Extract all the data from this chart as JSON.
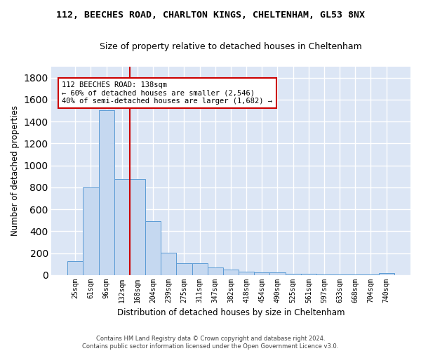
{
  "title1": "112, BEECHES ROAD, CHARLTON KINGS, CHELTENHAM, GL53 8NX",
  "title2": "Size of property relative to detached houses in Cheltenham",
  "xlabel": "Distribution of detached houses by size in Cheltenham",
  "ylabel": "Number of detached properties",
  "footer": "Contains HM Land Registry data © Crown copyright and database right 2024.\nContains public sector information licensed under the Open Government Licence v3.0.",
  "bar_labels": [
    "25sqm",
    "61sqm",
    "96sqm",
    "132sqm",
    "168sqm",
    "204sqm",
    "239sqm",
    "275sqm",
    "311sqm",
    "347sqm",
    "382sqm",
    "418sqm",
    "454sqm",
    "490sqm",
    "525sqm",
    "561sqm",
    "597sqm",
    "633sqm",
    "668sqm",
    "704sqm",
    "740sqm"
  ],
  "bar_values": [
    127,
    800,
    1500,
    875,
    875,
    490,
    205,
    110,
    110,
    70,
    50,
    30,
    25,
    25,
    10,
    10,
    5,
    5,
    5,
    5,
    18
  ],
  "bar_color": "#c5d8f0",
  "bar_edge_color": "#5b9bd5",
  "bg_color": "#dce6f5",
  "grid_color": "#ffffff",
  "ylim_max": 1900,
  "yticks": [
    0,
    200,
    400,
    600,
    800,
    1000,
    1200,
    1400,
    1600,
    1800
  ],
  "property_label": "112 BEECHES ROAD: 138sqm",
  "annotation_line1": "← 60% of detached houses are smaller (2,546)",
  "annotation_line2": "40% of semi-detached houses are larger (1,682) →",
  "vline_color": "#cc0000",
  "annotation_box_edge": "#cc0000",
  "vline_x": 3.5,
  "title1_fontsize": 9.5,
  "title2_fontsize": 9,
  "xlabel_fontsize": 8.5,
  "ylabel_fontsize": 8.5,
  "tick_fontsize": 7,
  "annotation_fontsize": 7.5
}
